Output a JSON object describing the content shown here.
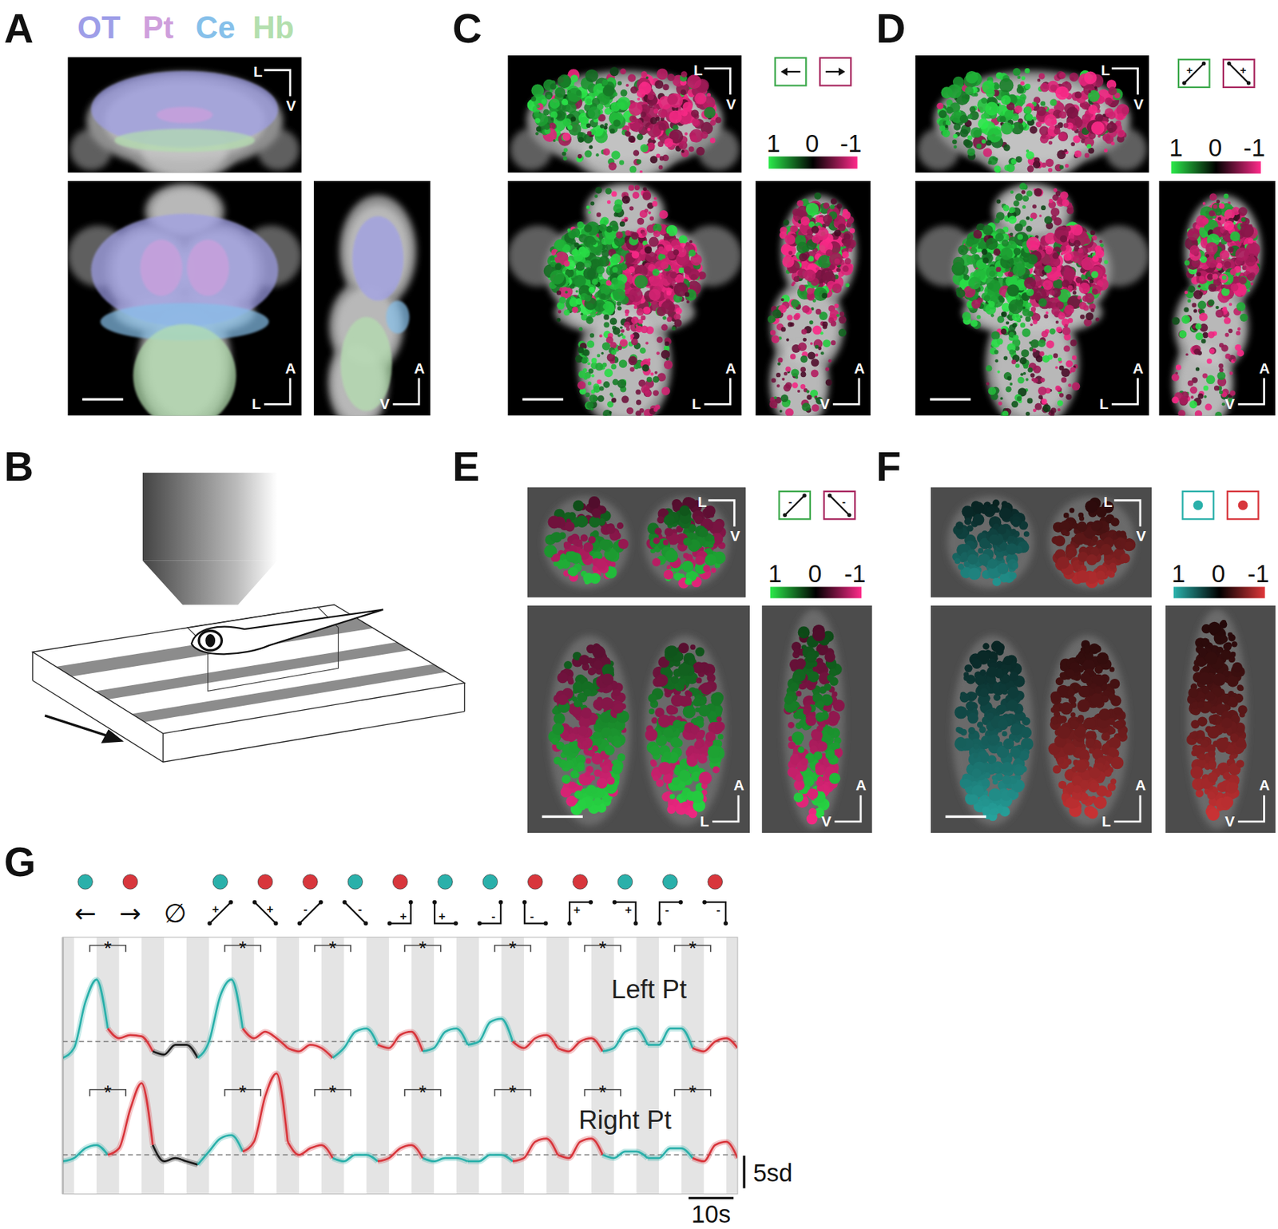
{
  "panels": {
    "A": {
      "letter": "A",
      "regions": [
        {
          "label": "OT",
          "color": "#9e9ee8"
        },
        {
          "label": "Pt",
          "color": "#cf9fdc"
        },
        {
          "label": "Ce",
          "color": "#86c0ea"
        },
        {
          "label": "Hb",
          "color": "#b3dfae"
        }
      ],
      "views": [
        {
          "orient": [
            "L",
            "V"
          ]
        },
        {
          "orient": [
            "L",
            "A"
          ]
        },
        {
          "orient": [
            "V",
            "A"
          ]
        }
      ]
    },
    "B": {
      "letter": "B"
    },
    "C": {
      "letter": "C",
      "legend": [
        {
          "shape": "arrow-left",
          "color": "#3da94c"
        },
        {
          "shape": "arrow-right",
          "color": "#a8275f"
        }
      ],
      "colorbar": {
        "range": [
          1,
          -1
        ],
        "ticks": [
          1,
          0,
          -1
        ],
        "colors": [
          "#2bea4a",
          "#000000",
          "#ff2a8a"
        ]
      },
      "views": [
        {
          "orient": [
            "L",
            "V"
          ]
        },
        {
          "orient": [
            "L",
            "A"
          ]
        },
        {
          "orient": [
            "V",
            "A"
          ]
        }
      ]
    },
    "D": {
      "letter": "D",
      "legend": [
        {
          "shape": "rise",
          "sign": "+",
          "color": "#3da94c"
        },
        {
          "shape": "fall",
          "sign": "+",
          "color": "#a8275f"
        }
      ],
      "colorbar": {
        "range": [
          1,
          -1
        ],
        "ticks": [
          1,
          0,
          -1
        ],
        "colors": [
          "#2bea4a",
          "#000000",
          "#ff2a8a"
        ]
      },
      "views": [
        {
          "orient": [
            "L",
            "V"
          ]
        },
        {
          "orient": [
            "L",
            "A"
          ]
        },
        {
          "orient": [
            "V",
            "A"
          ]
        }
      ]
    },
    "E": {
      "letter": "E",
      "legend": [
        {
          "shape": "rise",
          "sign": "-",
          "color": "#3da94c"
        },
        {
          "shape": "fall",
          "sign": "-",
          "color": "#a8275f"
        }
      ],
      "colorbar": {
        "range": [
          1,
          -1
        ],
        "ticks": [
          1,
          0,
          -1
        ],
        "colors": [
          "#2bea4a",
          "#000000",
          "#ff2a8a"
        ]
      },
      "views": [
        {
          "orient": [
            "L",
            "V"
          ]
        },
        {
          "orient": [
            "L",
            "A"
          ]
        },
        {
          "orient": [
            "V",
            "A"
          ]
        }
      ]
    },
    "F": {
      "letter": "F",
      "legend": [
        {
          "shape": "circle",
          "color": "#2ab0aa"
        },
        {
          "shape": "circle",
          "color": "#d8363c"
        }
      ],
      "colorbar": {
        "range": [
          1,
          -1
        ],
        "ticks": [
          1,
          0,
          -1
        ],
        "colors": [
          "#2ab3ad",
          "#000000",
          "#e0383a"
        ]
      },
      "views": [
        {
          "orient": [
            "L",
            "V"
          ]
        },
        {
          "orient": [
            "L",
            "A"
          ]
        },
        {
          "orient": [
            "V",
            "A"
          ]
        }
      ]
    }
  },
  "chart_data": {
    "type": "line",
    "title": "G",
    "tick_labels": false,
    "x": [
      0,
      2.5,
      5,
      7.5,
      10,
      12.5,
      15,
      17.5,
      20,
      22.5,
      25,
      27.5,
      30,
      32.5,
      35,
      37.5,
      40,
      42.5,
      45,
      47.5,
      50,
      52.5,
      55,
      57.5,
      60,
      62.5,
      65,
      67.5,
      70,
      72.5,
      75,
      77.5,
      80,
      82.5,
      85,
      87.5,
      90,
      92.5,
      95,
      97.5,
      100,
      102.5,
      105,
      107.5,
      110,
      112.5,
      115,
      117.5,
      120,
      122.5,
      125,
      127.5,
      130,
      132.5,
      135,
      137.5,
      140,
      142.5,
      145,
      147.5,
      150
    ],
    "xlim": [
      0,
      150
    ],
    "ylim": [
      -4,
      16
    ],
    "y2lim": [
      -6,
      14
    ],
    "baseline": 0,
    "series": [
      {
        "name": "Left Pt",
        "values": [
          -2.5,
          -1,
          6,
          9.5,
          2,
          0.5,
          1,
          0.8,
          -1.5,
          -2,
          -0.5,
          -0.5,
          -2.5,
          0,
          7,
          9.5,
          2,
          0.5,
          1.5,
          0.5,
          -1,
          -1.5,
          -0.5,
          -1,
          -2.5,
          -1,
          1.5,
          2,
          -0.5,
          -1,
          1,
          1.5,
          -1.5,
          -1,
          1.5,
          2,
          -0.5,
          0,
          3,
          3.5,
          0,
          -1,
          0.5,
          1,
          -1,
          -1.5,
          0,
          0.5,
          -1.5,
          -1,
          1.5,
          2,
          -0.5,
          -0.5,
          2,
          2,
          -1,
          -1.5,
          0,
          0.5,
          -1
        ]
      },
      {
        "name": "Right Pt",
        "axis": "y2",
        "values": [
          -1,
          -0.5,
          1,
          1.5,
          0,
          1,
          7,
          11,
          1.5,
          -1,
          -0.5,
          -1,
          -1.5,
          0.5,
          2.5,
          3,
          0.5,
          2,
          9,
          12.5,
          2,
          0,
          1,
          1.5,
          -0.5,
          -1,
          0,
          0,
          -1,
          -0.5,
          1,
          1.5,
          -0.5,
          -1,
          -0.5,
          -0.5,
          -1,
          -1,
          0,
          0,
          -1,
          -0.5,
          2,
          2.5,
          0,
          -0.5,
          2,
          2.5,
          0,
          -0.5,
          0.5,
          0.5,
          -0.5,
          -0.5,
          1,
          1,
          -0.5,
          -1,
          1.5,
          2,
          -0.5
        ]
      }
    ],
    "stimuli": [
      {
        "symbol": "←",
        "color": "#2ab0aa",
        "marker": "circle"
      },
      {
        "symbol": "→",
        "color": "#d8363c",
        "marker": "circle"
      },
      {
        "symbol": "∅",
        "color": "#1a1a1a",
        "marker": null
      },
      {
        "shape": "rise",
        "sign": "+",
        "color": "#2ab0aa",
        "marker": "circle"
      },
      {
        "shape": "fall",
        "sign": "+",
        "color": "#d8363c",
        "marker": "circle"
      },
      {
        "shape": "rise",
        "sign": "-",
        "color": "#d8363c",
        "marker": "circle"
      },
      {
        "shape": "fall",
        "sign": "-",
        "color": "#2ab0aa",
        "marker": "circle"
      },
      {
        "shape": "corner-br",
        "sign": "+",
        "color": "#d8363c",
        "marker": "circle"
      },
      {
        "shape": "corner-bl",
        "sign": "+",
        "color": "#2ab0aa",
        "marker": "circle"
      },
      {
        "shape": "corner-br",
        "sign": "-",
        "color": "#2ab0aa",
        "marker": "circle"
      },
      {
        "shape": "corner-bl",
        "sign": "-",
        "color": "#d8363c",
        "marker": "circle"
      },
      {
        "shape": "corner-tl",
        "sign": "+",
        "color": "#d8363c",
        "marker": "circle"
      },
      {
        "shape": "corner-tr",
        "sign": "+",
        "color": "#2ab0aa",
        "marker": "circle"
      },
      {
        "shape": "corner-tl",
        "sign": "-",
        "color": "#2ab0aa",
        "marker": "circle"
      },
      {
        "shape": "corner-tr",
        "sign": "-",
        "color": "#d8363c",
        "marker": "circle"
      }
    ],
    "gray_bands": [
      [
        0,
        2.5
      ],
      [
        7.5,
        12.5
      ],
      [
        17.5,
        22.5
      ],
      [
        27.5,
        32.5
      ],
      [
        37.5,
        42.5
      ],
      [
        47.5,
        52.5
      ],
      [
        57.5,
        62.5
      ],
      [
        67.5,
        72.5
      ],
      [
        77.5,
        82.5
      ],
      [
        87.5,
        92.5
      ],
      [
        97.5,
        102.5
      ],
      [
        107.5,
        112.5
      ],
      [
        117.5,
        122.5
      ],
      [
        127.5,
        132.5
      ],
      [
        137.5,
        142.5
      ],
      [
        147.5,
        150
      ]
    ],
    "comparisons": {
      "pairs": [
        [
          0,
          1
        ],
        [
          3,
          4
        ],
        [
          5,
          6
        ],
        [
          7,
          8
        ],
        [
          9,
          10
        ],
        [
          11,
          12
        ],
        [
          13,
          14
        ]
      ],
      "label": "*"
    },
    "scalebars": {
      "y": {
        "value": 5,
        "label": "5sd"
      },
      "x": {
        "value": 10,
        "label": "10s"
      }
    }
  }
}
